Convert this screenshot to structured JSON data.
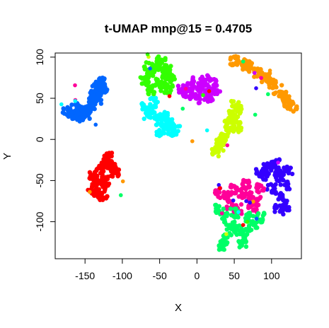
{
  "chart_data": {
    "type": "scatter",
    "title": "t-UMAP mnp@15 = 0.4705",
    "xlabel": "X",
    "ylabel": "Y",
    "xlim": [
      -190,
      140
    ],
    "ylim": [
      -145,
      105
    ],
    "xticks": [
      -150,
      -100,
      -50,
      0,
      50,
      100
    ],
    "yticks": [
      -100,
      -50,
      0,
      50,
      100
    ],
    "grid": false,
    "legend": "none",
    "clusters": [
      {
        "color": "#0066FF",
        "center": [
          -150,
          40
        ],
        "points": [
          [
            -175,
            33
          ],
          [
            -168,
            30
          ],
          [
            -160,
            32
          ],
          [
            -152,
            35
          ],
          [
            -145,
            38
          ],
          [
            -140,
            45
          ],
          [
            -138,
            52
          ],
          [
            -136,
            60
          ],
          [
            -132,
            65
          ],
          [
            -128,
            70
          ],
          [
            -130,
            58
          ],
          [
            -155,
            28
          ],
          [
            -162,
            38
          ],
          [
            -148,
            30
          ],
          [
            -142,
            42
          ],
          [
            -134,
            48
          ],
          [
            -126,
            62
          ]
        ]
      },
      {
        "color": "#FF0000",
        "center": [
          -125,
          -45
        ],
        "points": [
          [
            -140,
            -60
          ],
          [
            -135,
            -50
          ],
          [
            -130,
            -40
          ],
          [
            -125,
            -30
          ],
          [
            -120,
            -22
          ],
          [
            -115,
            -35
          ],
          [
            -110,
            -40
          ],
          [
            -128,
            -55
          ],
          [
            -132,
            -65
          ],
          [
            -138,
            -45
          ],
          [
            -122,
            -50
          ],
          [
            -118,
            -28
          ],
          [
            -126,
            -68
          ]
        ]
      },
      {
        "color": "#33FF00",
        "center": [
          -50,
          75
        ],
        "points": [
          [
            -70,
            72
          ],
          [
            -62,
            80
          ],
          [
            -55,
            90
          ],
          [
            -48,
            95
          ],
          [
            -40,
            85
          ],
          [
            -35,
            75
          ],
          [
            -45,
            65
          ],
          [
            -60,
            60
          ],
          [
            -52,
            70
          ],
          [
            -42,
            78
          ],
          [
            -65,
            88
          ],
          [
            -38,
            62
          ]
        ]
      },
      {
        "color": "#CC00FF",
        "center": [
          5,
          60
        ],
        "points": [
          [
            -20,
            60
          ],
          [
            -10,
            65
          ],
          [
            0,
            70
          ],
          [
            10,
            72
          ],
          [
            20,
            68
          ],
          [
            25,
            60
          ],
          [
            15,
            52
          ],
          [
            0,
            50
          ],
          [
            -12,
            55
          ],
          [
            5,
            62
          ],
          [
            18,
            58
          ]
        ]
      },
      {
        "color": "#00FFFF",
        "center": [
          -40,
          25
        ],
        "points": [
          [
            -70,
            40
          ],
          [
            -62,
            35
          ],
          [
            -55,
            30
          ],
          [
            -50,
            22
          ],
          [
            -42,
            18
          ],
          [
            -35,
            10
          ],
          [
            -28,
            12
          ],
          [
            -45,
            28
          ],
          [
            -58,
            45
          ],
          [
            -38,
            20
          ],
          [
            -48,
            8
          ],
          [
            -65,
            30
          ]
        ]
      },
      {
        "color": "#CCFF00",
        "center": [
          45,
          10
        ],
        "points": [
          [
            25,
            -15
          ],
          [
            32,
            -5
          ],
          [
            38,
            5
          ],
          [
            45,
            15
          ],
          [
            50,
            25
          ],
          [
            55,
            35
          ],
          [
            52,
            45
          ],
          [
            48,
            30
          ],
          [
            42,
            20
          ],
          [
            35,
            0
          ],
          [
            30,
            -10
          ],
          [
            55,
            15
          ]
        ]
      },
      {
        "color": "#FF9900",
        "center": [
          95,
          70
        ],
        "points": [
          [
            50,
            95
          ],
          [
            60,
            92
          ],
          [
            72,
            88
          ],
          [
            82,
            82
          ],
          [
            92,
            75
          ],
          [
            100,
            68
          ],
          [
            108,
            60
          ],
          [
            115,
            52
          ],
          [
            122,
            42
          ],
          [
            128,
            40
          ],
          [
            118,
            48
          ],
          [
            88,
            78
          ],
          [
            66,
            90
          ]
        ]
      },
      {
        "color": "#3300FF",
        "center": [
          100,
          -50
        ],
        "points": [
          [
            85,
            -40
          ],
          [
            95,
            -35
          ],
          [
            105,
            -30
          ],
          [
            112,
            -40
          ],
          [
            118,
            -55
          ],
          [
            115,
            -70
          ],
          [
            110,
            -85
          ],
          [
            100,
            -60
          ],
          [
            92,
            -45
          ],
          [
            108,
            -45
          ],
          [
            122,
            -38
          ],
          [
            118,
            -80
          ]
        ]
      },
      {
        "color": "#FF0099",
        "center": [
          60,
          -75
        ],
        "points": [
          [
            30,
            -65
          ],
          [
            40,
            -70
          ],
          [
            50,
            -60
          ],
          [
            60,
            -65
          ],
          [
            70,
            -70
          ],
          [
            80,
            -75
          ],
          [
            75,
            -85
          ],
          [
            55,
            -85
          ],
          [
            45,
            -80
          ],
          [
            65,
            -55
          ],
          [
            85,
            -60
          ]
        ]
      },
      {
        "color": "#00FF66",
        "center": [
          60,
          -100
        ],
        "points": [
          [
            30,
            -85
          ],
          [
            38,
            -95
          ],
          [
            45,
            -105
          ],
          [
            55,
            -110
          ],
          [
            65,
            -115
          ],
          [
            75,
            -105
          ],
          [
            85,
            -95
          ],
          [
            70,
            -95
          ],
          [
            50,
            -90
          ],
          [
            40,
            -120
          ],
          [
            60,
            -125
          ],
          [
            35,
            -130
          ]
        ]
      }
    ]
  }
}
